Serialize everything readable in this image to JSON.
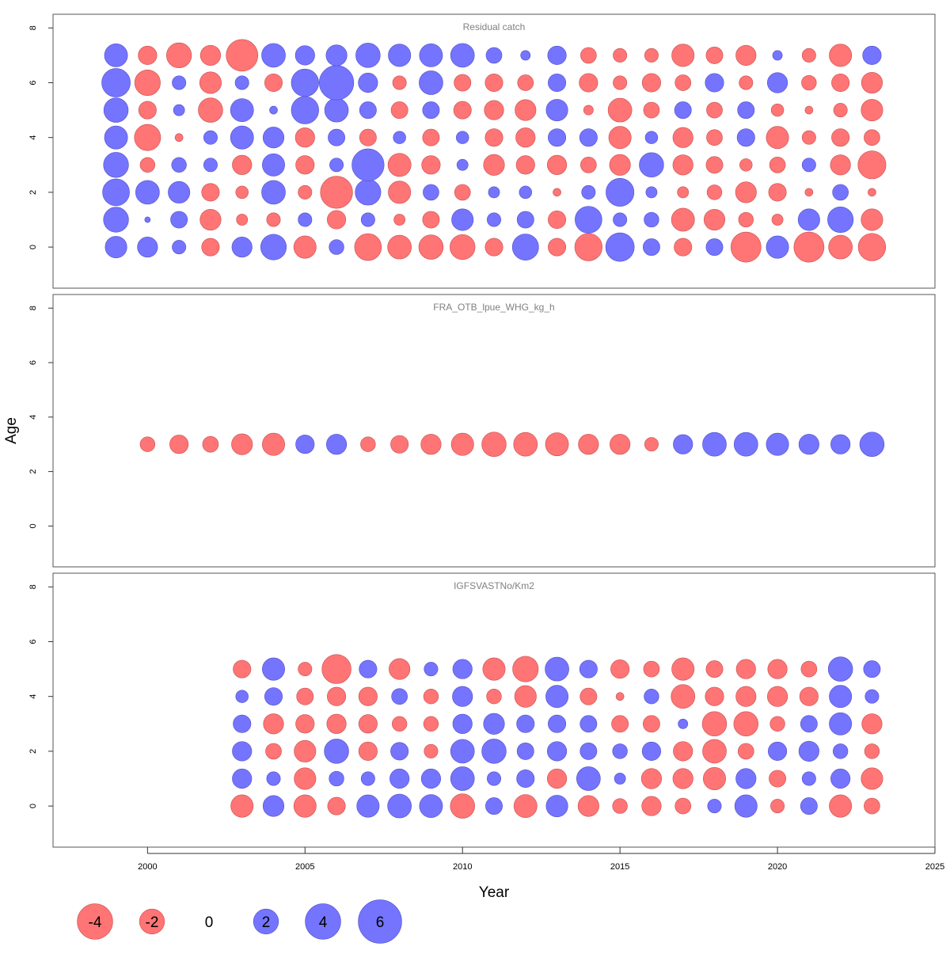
{
  "chart_data": {
    "type": "scatter",
    "subtype": "bubble residual plot",
    "xlabel": "Year",
    "ylabel": "Age",
    "xlim": [
      1997,
      2025
    ],
    "ylim": [
      -1.5,
      8.5
    ],
    "x_ticks": [
      2000,
      2005,
      2010,
      2015,
      2020,
      2025
    ],
    "y_ticks": [
      0,
      2,
      4,
      6,
      8
    ],
    "colors": {
      "negative": "#ff7474",
      "positive": "#7474ff",
      "negative_stroke": "#c85050",
      "positive_stroke": "#5050c8"
    },
    "legend": {
      "position": "bottom-left",
      "values": [
        -4,
        -2,
        0,
        2,
        4,
        6
      ],
      "labels": [
        "-4",
        "-2",
        "0",
        "2",
        "4",
        "6"
      ]
    },
    "panels": [
      {
        "title": "Residual catch",
        "ages": [
          0,
          1,
          2,
          3,
          4,
          5,
          6,
          7
        ],
        "years": [
          1999,
          2000,
          2001,
          2002,
          2003,
          2004,
          2005,
          2006,
          2007,
          2008,
          2009,
          2010,
          2011,
          2012,
          2013,
          2014,
          2015,
          2016,
          2017,
          2018,
          2019,
          2020,
          2021,
          2022,
          2023
        ],
        "residuals": [
          [
            1.5,
            1.3,
            0.6,
            -1.0,
            1.3,
            2.1,
            -1.6,
            0.7,
            -2.3,
            -1.8,
            -1.9,
            -2.0,
            -1.0,
            2.2,
            -1.0,
            -2.4,
            2.6,
            0.9,
            -1.0,
            0.9,
            -2.9,
            1.6,
            -2.9,
            -1.8,
            -2.4
          ],
          [
            2.0,
            0.1,
            0.9,
            -1.4,
            -0.4,
            -0.6,
            0.6,
            -1.1,
            0.6,
            -0.4,
            -0.9,
            1.5,
            0.6,
            0.9,
            -1.0,
            2.3,
            0.6,
            0.7,
            -1.7,
            -1.4,
            -0.7,
            -0.4,
            1.5,
            2.1,
            -1.5
          ],
          [
            2.3,
            1.8,
            1.5,
            -1.0,
            -0.5,
            1.8,
            -0.6,
            -3.3,
            2.1,
            -1.6,
            0.8,
            -0.8,
            0.4,
            0.5,
            -0.2,
            0.6,
            2.5,
            0.4,
            -0.4,
            -0.7,
            -1.4,
            -1.0,
            -0.2,
            0.8,
            -0.2
          ],
          [
            2.0,
            -0.7,
            0.7,
            0.6,
            -1.2,
            1.6,
            -1.1,
            0.6,
            3.3,
            -1.7,
            -1.1,
            0.4,
            -1.4,
            -1.1,
            -1.2,
            -0.8,
            -1.4,
            1.9,
            -1.3,
            -0.9,
            -0.5,
            -0.8,
            0.6,
            -1.3,
            -2.5
          ],
          [
            1.7,
            -2.2,
            -0.2,
            0.6,
            1.7,
            1.4,
            -1.2,
            0.9,
            -0.9,
            0.5,
            -0.9,
            0.5,
            -1.0,
            -1.2,
            1.0,
            1.0,
            -1.6,
            0.5,
            -1.3,
            -0.8,
            1.0,
            -1.6,
            -0.6,
            -1.0,
            -0.8
          ],
          [
            1.9,
            -1.0,
            0.4,
            -1.9,
            1.7,
            0.2,
            2.4,
            1.8,
            0.9,
            -0.9,
            0.9,
            -1.0,
            -1.2,
            -1.4,
            1.5,
            -0.3,
            -1.8,
            -0.8,
            0.9,
            -0.8,
            0.9,
            -0.5,
            -0.2,
            -0.6,
            -1.5
          ],
          [
            2.6,
            -2.1,
            0.6,
            -1.5,
            0.6,
            -1.0,
            2.4,
            3.8,
            1.2,
            -0.6,
            1.8,
            -0.9,
            -1.0,
            -0.8,
            1.0,
            -1.1,
            -0.6,
            -1.1,
            -0.8,
            1.1,
            -0.6,
            1.3,
            -0.7,
            -1.0,
            -1.4
          ],
          [
            1.7,
            -1.1,
            -2.0,
            -1.3,
            -3.2,
            1.8,
            1.2,
            1.4,
            1.9,
            1.6,
            1.7,
            1.8,
            0.8,
            0.3,
            1.1,
            -0.8,
            -0.6,
            -0.6,
            -1.6,
            -0.9,
            -1.3,
            0.3,
            -0.6,
            -1.6,
            1.1
          ]
        ]
      },
      {
        "title": "FRA_OTB_lpue_WHG_kg_h",
        "ages": [
          3
        ],
        "years": [
          2000,
          2001,
          2002,
          2003,
          2004,
          2005,
          2006,
          2007,
          2008,
          2009,
          2010,
          2011,
          2012,
          2013,
          2014,
          2015,
          2016,
          2017,
          2018,
          2019,
          2020,
          2021,
          2022,
          2023
        ],
        "residuals": [
          [
            -0.7,
            -1.1,
            -0.8,
            -1.4,
            -1.6,
            1.1,
            1.3,
            -0.7,
            -1.0,
            -1.3,
            -1.6,
            -1.9,
            -1.8,
            -1.7,
            -1.3,
            -1.3,
            -0.6,
            1.2,
            1.8,
            1.8,
            1.6,
            1.3,
            1.2,
            1.9
          ]
        ]
      },
      {
        "title": "IGFSVASTNo/Km2",
        "ages": [
          0,
          1,
          2,
          3,
          4,
          5
        ],
        "years": [
          2003,
          2004,
          2005,
          2006,
          2007,
          2008,
          2009,
          2010,
          2011,
          2012,
          2013,
          2014,
          2015,
          2016,
          2017,
          2018,
          2019,
          2020,
          2021,
          2022,
          2023
        ],
        "residuals": [
          [
            -1.6,
            1.4,
            -1.6,
            -1.0,
            1.6,
            1.8,
            1.7,
            -1.9,
            0.9,
            -1.7,
            1.5,
            -1.4,
            -0.7,
            -1.2,
            -0.8,
            0.6,
            1.6,
            -0.6,
            0.9,
            -1.6,
            -0.8
          ],
          [
            1.2,
            0.6,
            -1.5,
            0.7,
            0.6,
            1.2,
            1.2,
            1.8,
            0.6,
            1.0,
            -1.2,
            1.8,
            0.4,
            -1.3,
            -1.3,
            -1.6,
            1.3,
            -0.9,
            0.6,
            1.2,
            -1.5
          ],
          [
            1.2,
            -0.8,
            -1.5,
            1.9,
            -1.1,
            1.0,
            -0.6,
            1.8,
            1.9,
            0.9,
            1.2,
            0.9,
            0.7,
            1.1,
            -1.2,
            -1.8,
            -0.8,
            1.1,
            1.3,
            0.7,
            -0.7
          ],
          [
            1.0,
            -1.3,
            -1.1,
            -1.2,
            -1.1,
            -0.7,
            -0.7,
            1.2,
            1.4,
            1.0,
            1.0,
            0.9,
            -0.9,
            -0.9,
            0.3,
            -1.9,
            -1.9,
            -0.7,
            0.9,
            1.6,
            -1.3
          ],
          [
            0.5,
            1.0,
            -0.9,
            -1.1,
            -1.1,
            0.8,
            -0.7,
            1.3,
            -0.7,
            -1.5,
            1.6,
            -0.9,
            -0.2,
            0.7,
            -1.8,
            -1.1,
            -1.3,
            -1.3,
            -1.1,
            1.6,
            0.6
          ],
          [
            -1.0,
            1.6,
            -0.6,
            -2.7,
            1.0,
            -1.4,
            0.6,
            1.2,
            -1.6,
            -2.1,
            1.8,
            1.0,
            -1.1,
            -0.8,
            -1.6,
            -0.9,
            -1.2,
            -1.2,
            -0.8,
            1.9,
            0.9
          ]
        ]
      }
    ]
  }
}
